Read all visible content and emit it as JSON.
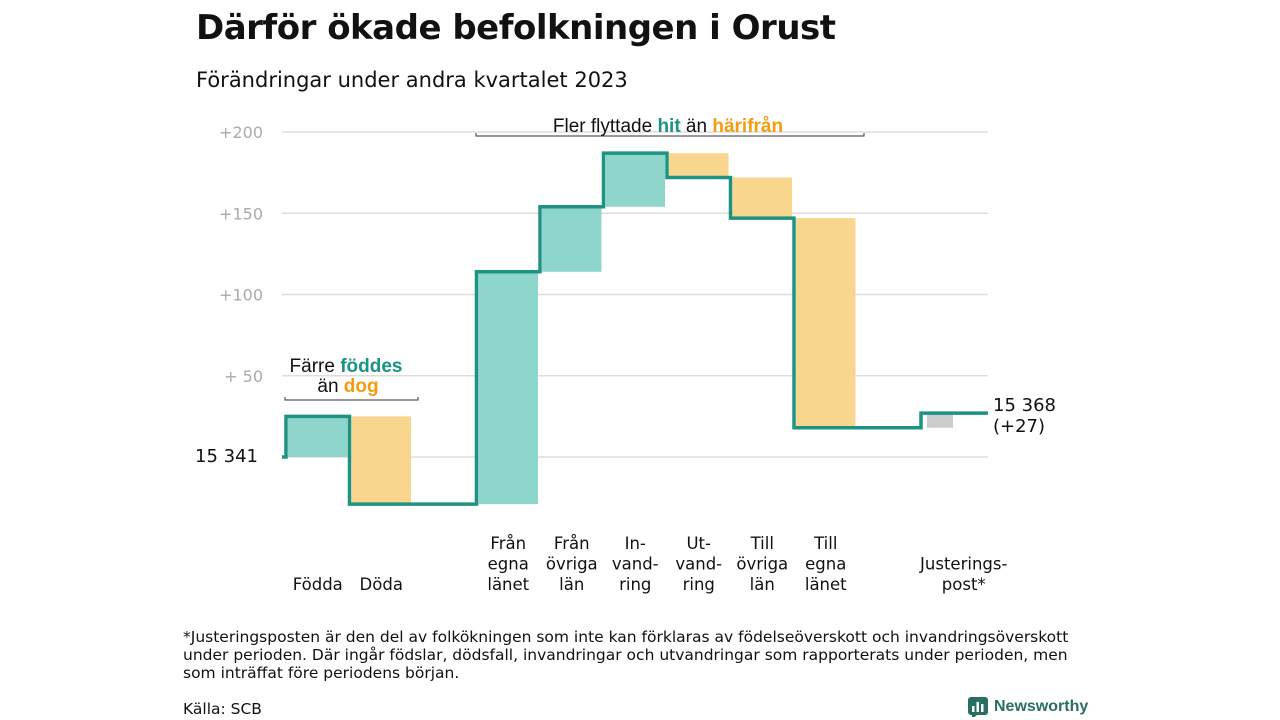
{
  "title": "Därför ökade befolkningen i Orust",
  "subtitle": "Förändringar under andra kvartalet 2023",
  "footnote": "*Justeringsposten är den del av folkökningen som inte kan förklaras av födelseöverskott och invandringsöverskott under perioden. Där ingår födslar, dödsfall, invandringar och utvandringar som rapporterats under perioden, men som inträffat före periodens början.",
  "source": "Källa: SCB",
  "brand": {
    "name": "Newsworthy"
  },
  "colors": {
    "in": "#8ed5cc",
    "out": "#f9d68d",
    "adjust": "#cccccc",
    "line": "#1f9383",
    "green_text": "#1a9383",
    "orange_text": "#f39c12",
    "grid": "#dddddd",
    "tick": "#aaaaaa"
  },
  "chart_data": {
    "type": "waterfall",
    "start_label": "15  341",
    "end_label": {
      "value": "15 368",
      "change": "(+27)"
    },
    "y_ticks": [
      {
        "v": 0,
        "label": ""
      },
      {
        "v": 50,
        "label": "+  50"
      },
      {
        "v": 100,
        "label": "+100"
      },
      {
        "v": 150,
        "label": "+150"
      },
      {
        "v": 200,
        "label": "+200"
      }
    ],
    "ylim": [
      -30,
      210
    ],
    "steps": [
      {
        "label": [
          "Födda"
        ],
        "start": 0,
        "end": 25,
        "kind": "in"
      },
      {
        "label": [
          "Döda"
        ],
        "start": 25,
        "end": -29,
        "kind": "out"
      },
      {
        "label": [],
        "start": -29,
        "end": -29,
        "kind": "gap"
      },
      {
        "label": [
          "Från",
          "egna",
          "länet"
        ],
        "start": -29,
        "end": 114,
        "kind": "in"
      },
      {
        "label": [
          "Från",
          "övriga",
          "län"
        ],
        "start": 114,
        "end": 154,
        "kind": "in"
      },
      {
        "label": [
          "In-",
          "vand-",
          "ring"
        ],
        "start": 154,
        "end": 187,
        "kind": "in"
      },
      {
        "label": [
          "Ut-",
          "vand-",
          "ring"
        ],
        "start": 187,
        "end": 172,
        "kind": "out"
      },
      {
        "label": [
          "Till",
          "övriga",
          "län"
        ],
        "start": 172,
        "end": 147,
        "kind": "out"
      },
      {
        "label": [
          "Till",
          "egna",
          "länet"
        ],
        "start": 147,
        "end": 18,
        "kind": "out"
      },
      {
        "label": [],
        "start": 18,
        "end": 18,
        "kind": "gap"
      },
      {
        "label": [
          "Justerings-",
          "post*"
        ],
        "start": 18,
        "end": 27,
        "kind": "adjust"
      }
    ],
    "annotations": [
      {
        "parts": [
          [
            "Fler flyttade ",
            "plain"
          ],
          [
            "hit",
            "green"
          ],
          [
            " än ",
            "plain"
          ],
          [
            "härifrån",
            "orange"
          ]
        ]
      },
      {
        "parts": [
          [
            "Färre ",
            "plain"
          ],
          [
            "föddes",
            "green"
          ]
        ]
      },
      {
        "parts": [
          [
            "än ",
            "plain"
          ],
          [
            "dog",
            "orange"
          ]
        ]
      }
    ]
  }
}
